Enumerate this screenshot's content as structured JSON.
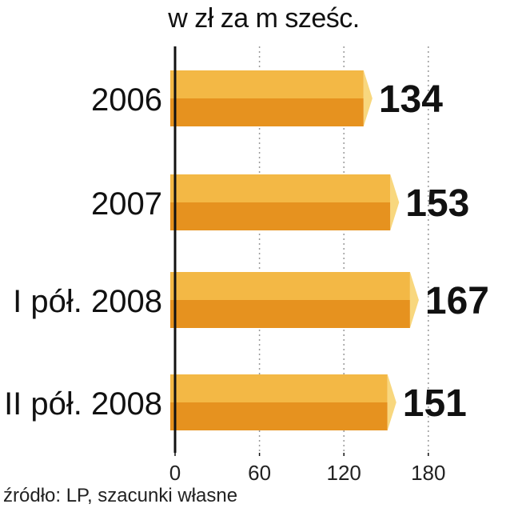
{
  "subtitle": "w zł za m sześc.",
  "source": "źródło: LP, szacunki własne",
  "colors": {
    "bar_top": "#F3B845",
    "bar_bottom": "#E6921F",
    "bar_cap": "#F8D77E",
    "axis": "#111111",
    "grid": "#999999"
  },
  "chart_data": {
    "type": "bar",
    "orientation": "horizontal",
    "categories": [
      "2006",
      "2007",
      "I pół. 2008",
      "II pół. 2008"
    ],
    "values": [
      134,
      153,
      167,
      151
    ],
    "value_labels": [
      "134",
      "153",
      "167",
      "151"
    ],
    "xlim": [
      0,
      180
    ],
    "xticks": [
      0,
      60,
      120,
      180
    ],
    "xtick_labels": [
      "0",
      "60",
      "120",
      "180"
    ],
    "grid": "vertical dashed",
    "legend": "none"
  }
}
